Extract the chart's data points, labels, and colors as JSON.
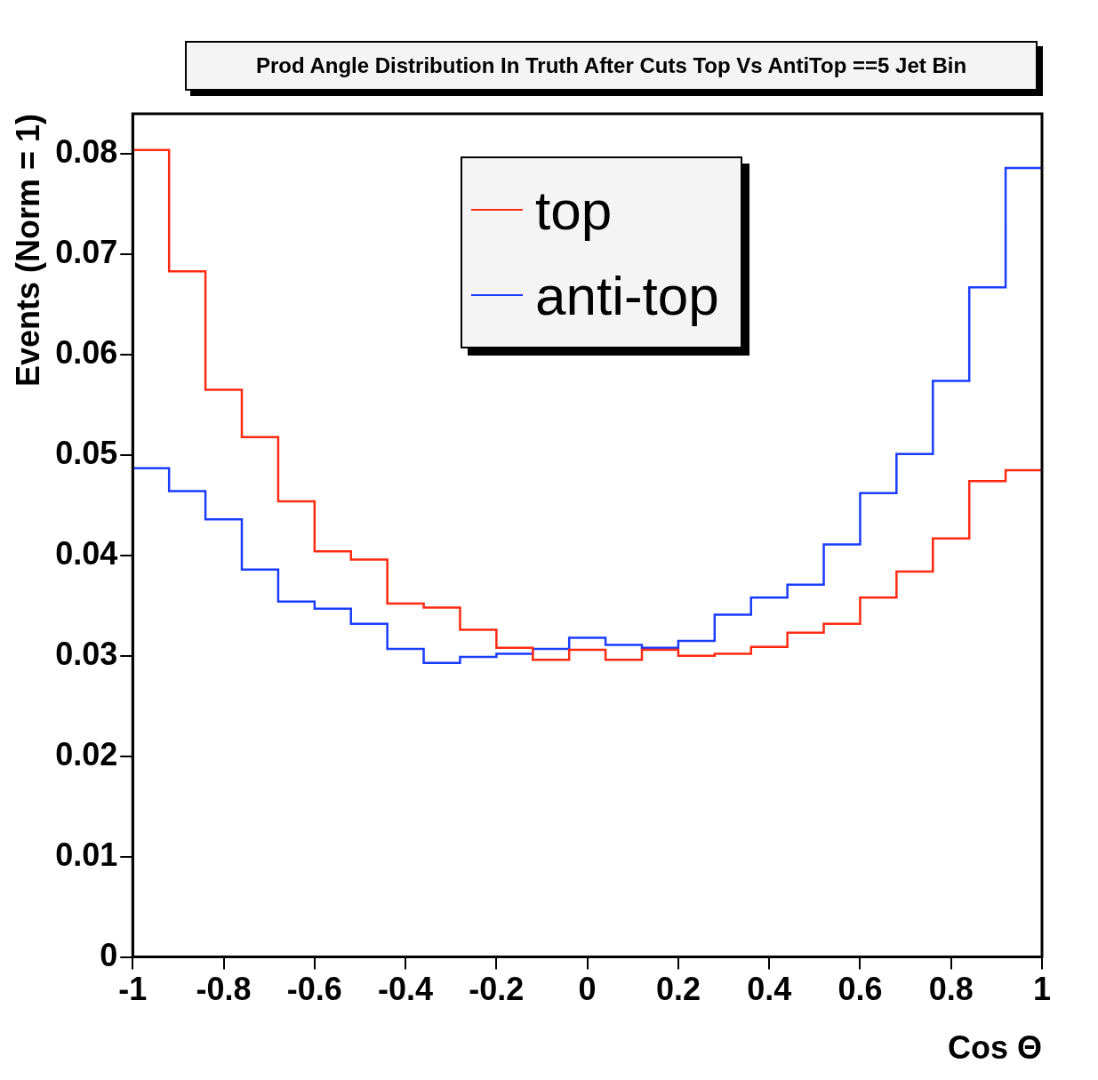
{
  "chart_data": {
    "type": "histogram",
    "title": "Prod Angle Distribution In Truth After Cuts Top Vs AntiTop ==5 Jet Bin",
    "xlabel": "Cos Θ",
    "ylabel": "Events (Norm = 1)",
    "bins": [
      -1,
      -0.92,
      -0.84,
      -0.76,
      -0.68,
      -0.6,
      -0.52,
      -0.44,
      -0.36,
      -0.28,
      -0.2,
      -0.12,
      -0.04,
      0.04,
      0.12,
      0.2,
      0.28,
      0.36,
      0.44,
      0.52,
      0.6,
      0.68,
      0.76,
      0.84,
      0.92,
      1
    ],
    "series": [
      {
        "name": "top",
        "color": "#ff2a10",
        "values": [
          0.0804,
          0.0683,
          0.0565,
          0.0518,
          0.0454,
          0.0404,
          0.0396,
          0.0352,
          0.0348,
          0.0326,
          0.0308,
          0.0296,
          0.0306,
          0.0296,
          0.0306,
          0.03,
          0.0302,
          0.0309,
          0.0323,
          0.0332,
          0.0358,
          0.0384,
          0.0417,
          0.0474,
          0.0485
        ]
      },
      {
        "name": "anti-top",
        "color": "#1a3cff",
        "values": [
          0.0487,
          0.0464,
          0.0436,
          0.0386,
          0.0354,
          0.0347,
          0.0332,
          0.0307,
          0.0293,
          0.0299,
          0.0302,
          0.0307,
          0.0318,
          0.0311,
          0.0308,
          0.0315,
          0.0341,
          0.0358,
          0.0371,
          0.0411,
          0.0462,
          0.0501,
          0.0574,
          0.0667,
          0.0786
        ]
      }
    ],
    "xlim": [
      -1,
      1
    ],
    "ylim": [
      0,
      0.084
    ],
    "xticks": [
      -1,
      -0.8,
      -0.6,
      -0.4,
      -0.2,
      0,
      0.2,
      0.4,
      0.6,
      0.8,
      1
    ],
    "yticks": [
      0,
      0.01,
      0.02,
      0.03,
      0.04,
      0.05,
      0.06,
      0.07,
      0.08
    ],
    "legend": "top"
  }
}
